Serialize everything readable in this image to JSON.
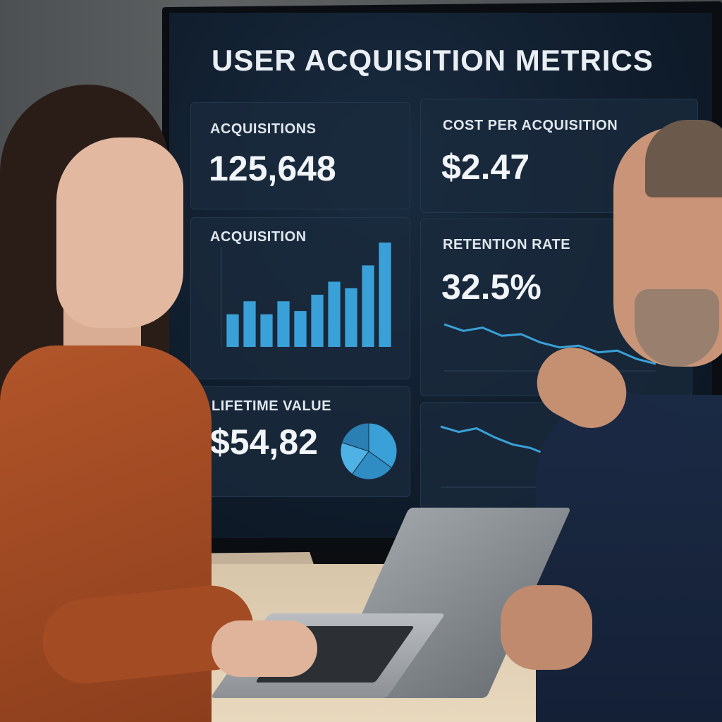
{
  "dashboard": {
    "title": "USER ACQUISITION METRICS",
    "cards": {
      "acquisitions": {
        "label": "ACQUISITIONS",
        "value": "125,648"
      },
      "cost_per_acquisition": {
        "label": "COST PER ACQUISITION",
        "value": "$2.47"
      },
      "acquisition_chart": {
        "label": "ACQUISITION"
      },
      "retention_rate": {
        "label": "RETENTION RATE",
        "value": "32.5%"
      },
      "lifetime_value": {
        "label": "LIFETIME VALUE",
        "value": "$54,82"
      }
    }
  },
  "colors": {
    "accent": "#3aa0d8",
    "screen_bg": "#0f1c2b",
    "card_bg": "#192a3c"
  },
  "chart_data": [
    {
      "type": "bar",
      "values": [
        5,
        7,
        5,
        7,
        5.5,
        8,
        10,
        9,
        12.5,
        16
      ]
    },
    {
      "type": "line",
      "values": [
        6.0,
        5.6,
        5.8,
        5.3,
        5.4,
        4.9,
        4.6,
        4.7,
        4.3,
        4.4,
        3.9,
        3.6
      ]
    },
    {
      "type": "pie",
      "values": [
        35,
        25,
        20,
        20
      ]
    },
    {
      "type": "line",
      "values": [
        6.0,
        5.7,
        5.9,
        5.4,
        5.0,
        4.8,
        4.4,
        4.2,
        3.9,
        3.6,
        3.3,
        3.0
      ]
    }
  ]
}
